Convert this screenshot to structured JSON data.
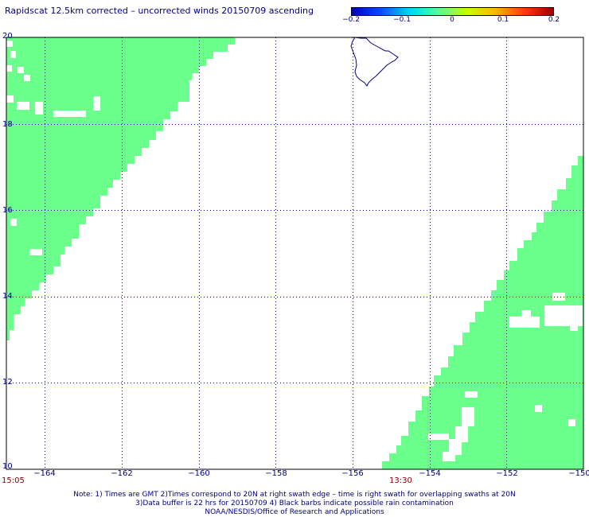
{
  "title": "Rapidscat 12.5km corrected – uncorrected winds 20150709 ascending",
  "colorbar": {
    "ticks": [
      "−0.2",
      "−0.1",
      "0",
      "0.1",
      "0.2"
    ],
    "colors": [
      "#0000b4",
      "#0050ff",
      "#00d2ff",
      "#50ff96",
      "#c8ff00",
      "#ffb400",
      "#ff3c00",
      "#9b0000"
    ]
  },
  "axes": {
    "lat_labels": [
      "20",
      "18",
      "16",
      "14",
      "12",
      "10"
    ],
    "lon_labels": [
      "−164",
      "−162",
      "−160",
      "−158",
      "−156",
      "−154",
      "−152",
      "−150"
    ],
    "lat_range": [
      10,
      20
    ],
    "lon_range": [
      -165,
      -150
    ]
  },
  "swath_color": "#6bff8c",
  "grid_color": "#000080",
  "coast_color": "#000080",
  "times": {
    "left": "15:05",
    "right": "13:30"
  },
  "notes": [
    "Note: 1) Times are GMT 2)Times correspond to 20N at right swath edge – time is right swath for overlapping swaths at 20N",
    "3)Data buffer is 22 hrs for 20150709 4) Black barbs indicate possible rain contamination",
    "NOAA/NESDIS/Office of Research and Applications"
  ]
}
